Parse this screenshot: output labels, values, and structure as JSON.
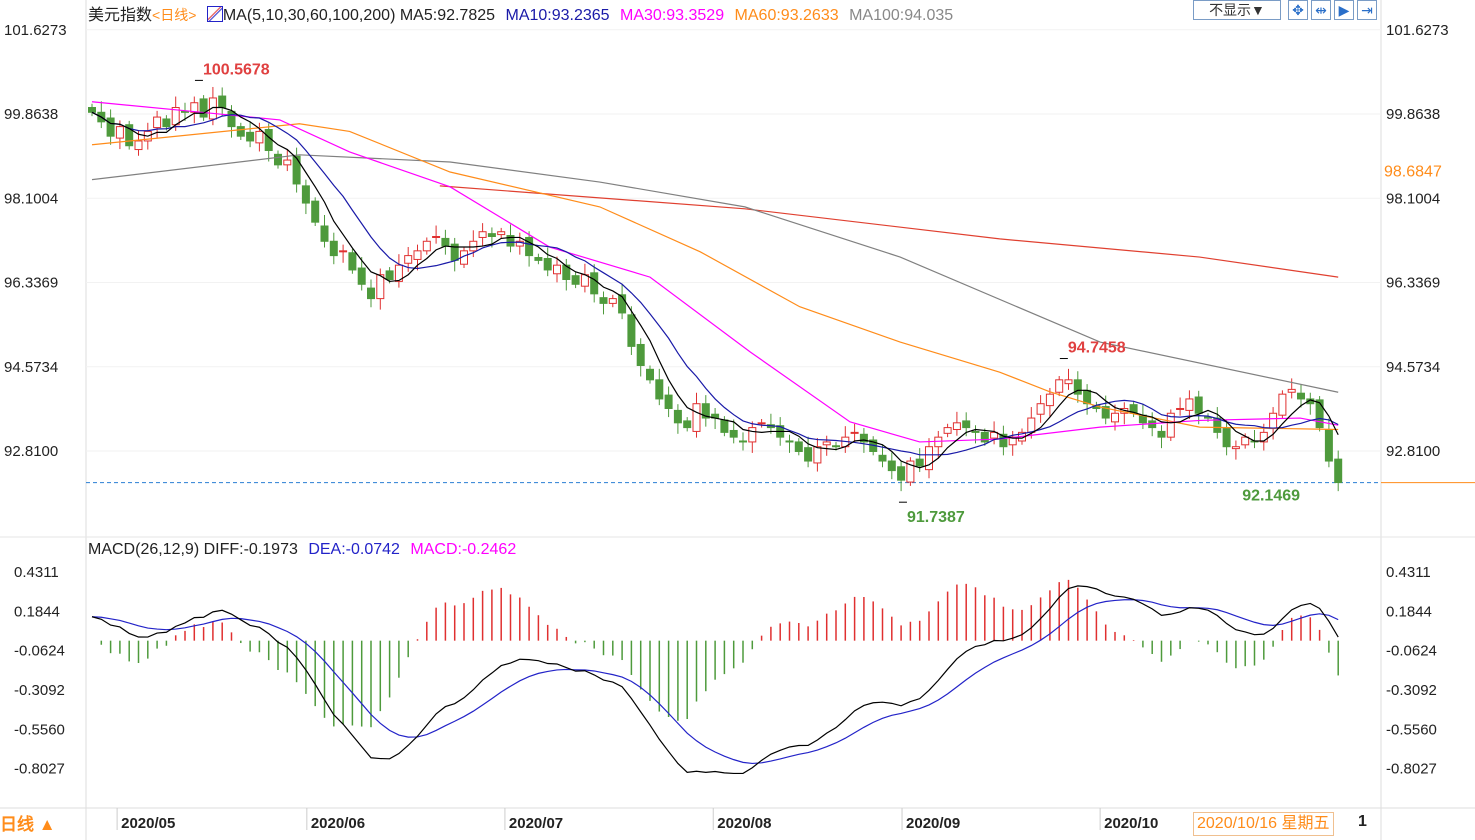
{
  "header": {
    "title": "美元指数",
    "period": "<日线>",
    "ma_label": "MA(5,10,30,60,100,200)",
    "ma5": "MA5:92.7825",
    "ma10": "MA10:93.2365",
    "ma30": "MA30:93.3529",
    "ma60": "MA60:93.2633",
    "ma100": "MA100:94.035",
    "display_select": "不显示▼"
  },
  "macd_header": {
    "label": "MACD(26,12,9)",
    "diff": "DIFF:-0.1973",
    "dea": "DEA:-0.0742",
    "macd": "MACD:-0.2462"
  },
  "footer": {
    "period_button": "日线 ▲",
    "current_date": "2020/10/16 星期五",
    "trailing": "1"
  },
  "colors": {
    "up": "#e03030",
    "down": "#4e9a3c",
    "ma5": "#000000",
    "ma10": "#1a1aa8",
    "ma30": "#ff00ff",
    "ma60": "#ff8c1a",
    "ma100": "#808080",
    "ma200": "#e04030",
    "dea": "#2323c8"
  },
  "chart_data": {
    "type": "candlestick",
    "title": "美元指数 日线",
    "y_ticks": [
      "101.6273",
      "99.8638",
      "98.1004",
      "96.3369",
      "94.5734",
      "92.8100"
    ],
    "y_tick_values": [
      101.6273,
      99.8638,
      98.1004,
      96.3369,
      94.5734,
      92.81
    ],
    "ylim": [
      91.01,
      101.79
    ],
    "x_ticks": [
      {
        "label": "2020/05",
        "index": 2.7
      },
      {
        "label": "2020/06",
        "index": 23.1
      },
      {
        "label": "2020/07",
        "index": 44.4
      },
      {
        "label": "2020/08",
        "index": 66.8
      },
      {
        "label": "2020/09",
        "index": 87.1
      },
      {
        "label": "2020/10",
        "index": 108.4
      }
    ],
    "closes": [
      99.9,
      99.7,
      99.4,
      99.6,
      99.2,
      99.3,
      99.5,
      99.8,
      99.6,
      100.0,
      99.9,
      100.1,
      99.8,
      100.2,
      100.0,
      99.6,
      99.4,
      99.3,
      99.5,
      99.1,
      98.8,
      98.9,
      98.4,
      98.0,
      97.6,
      97.2,
      96.9,
      97.0,
      96.6,
      96.3,
      96.0,
      96.5,
      96.4,
      96.7,
      96.9,
      97.0,
      97.2,
      97.3,
      97.1,
      96.8,
      97.0,
      97.2,
      97.4,
      97.3,
      97.4,
      97.1,
      97.2,
      96.9,
      96.8,
      96.6,
      96.7,
      96.4,
      96.3,
      96.5,
      96.1,
      95.9,
      96.0,
      95.7,
      95.0,
      94.6,
      94.3,
      93.9,
      93.7,
      93.4,
      93.3,
      93.8,
      93.5,
      93.5,
      93.2,
      93.1,
      93.0,
      93.3,
      93.4,
      93.3,
      93.1,
      93.0,
      92.8,
      92.6,
      92.9,
      93.0,
      92.9,
      93.1,
      93.2,
      93.0,
      92.8,
      92.6,
      92.4,
      92.2,
      92.6,
      92.5,
      92.9,
      93.1,
      93.3,
      93.4,
      93.3,
      93.2,
      93.0,
      93.2,
      92.9,
      93.1,
      93.2,
      93.5,
      93.8,
      94.0,
      94.3,
      94.3,
      94.0,
      93.8,
      93.7,
      93.5,
      93.6,
      93.7,
      93.6,
      93.4,
      93.3,
      93.1,
      93.6,
      93.7,
      93.9,
      93.6,
      93.5,
      93.2,
      92.9,
      92.9,
      93.1,
      93.0,
      93.2,
      93.6,
      94.0,
      94.1,
      93.9,
      93.8,
      93.3,
      92.6,
      92.15
    ],
    "ma_lines": {
      "ma30": [
        [
          0,
          100.12
        ],
        [
          11.8,
          99.9
        ],
        [
          20.2,
          99.74
        ],
        [
          27.7,
          99.07
        ],
        [
          38.5,
          98.34
        ],
        [
          49.2,
          97.08
        ],
        [
          60,
          96.45
        ],
        [
          70.8,
          94.88
        ],
        [
          81.5,
          93.42
        ],
        [
          89,
          93.0
        ],
        [
          97.6,
          93.06
        ],
        [
          108.4,
          93.31
        ],
        [
          119.1,
          93.45
        ],
        [
          129.9,
          93.5
        ],
        [
          134,
          93.35
        ]
      ],
      "ma60": [
        [
          0,
          99.22
        ],
        [
          22.3,
          99.66
        ],
        [
          27.7,
          99.5
        ],
        [
          38.5,
          98.65
        ],
        [
          54.6,
          97.92
        ],
        [
          65.4,
          96.98
        ],
        [
          76.1,
          95.83
        ],
        [
          86.9,
          95.09
        ],
        [
          97.6,
          94.46
        ],
        [
          103,
          94.05
        ],
        [
          108.4,
          93.73
        ],
        [
          119.1,
          93.31
        ],
        [
          134,
          93.26
        ]
      ],
      "ma100": [
        [
          0,
          98.49
        ],
        [
          22.3,
          99.01
        ],
        [
          38.5,
          98.86
        ],
        [
          54.6,
          98.44
        ],
        [
          70.2,
          97.92
        ],
        [
          86.9,
          96.87
        ],
        [
          108.4,
          95.09
        ],
        [
          134,
          94.04
        ]
      ],
      "ma200": [
        [
          37.4,
          98.36
        ],
        [
          70.2,
          97.88
        ],
        [
          97.6,
          97.25
        ],
        [
          119.1,
          96.87
        ],
        [
          134,
          96.45
        ]
      ]
    },
    "annotations": [
      {
        "text": "100.5678",
        "index": 11.5,
        "value": 100.5678,
        "kind": "high"
      },
      {
        "text": "94.7458",
        "index": 104.5,
        "value": 94.7458,
        "kind": "high"
      },
      {
        "text": "91.7387",
        "index": 87.2,
        "value": 91.7387,
        "kind": "low"
      },
      {
        "text": "92.1469",
        "index": 134,
        "value": 92.1469,
        "kind": "last"
      }
    ],
    "right_tag": "98.6847",
    "last_price": 92.1469,
    "macd": {
      "y_ticks": [
        "0.4311",
        "0.1844",
        "-0.0624",
        "-0.3092",
        "-0.5560",
        "-0.8027"
      ],
      "y_tick_values": [
        0.4311,
        0.1844,
        -0.0624,
        -0.3092,
        -0.556,
        -0.8027
      ],
      "ylim": [
        -1.037,
        0.506
      ],
      "fast": 12,
      "slow": 26,
      "signal": 9
    }
  }
}
